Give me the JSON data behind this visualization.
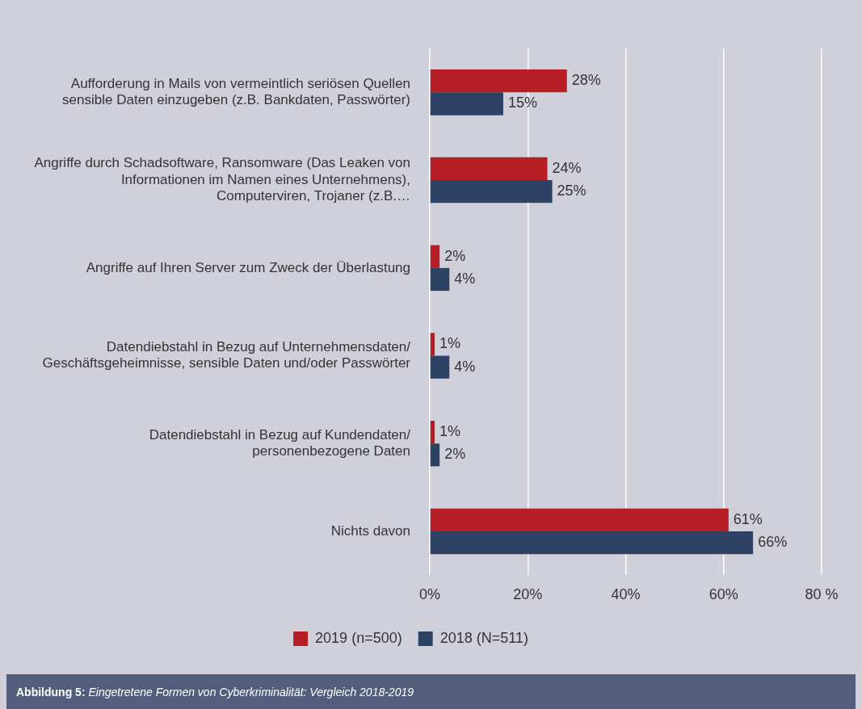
{
  "chart_data": {
    "type": "bar",
    "orientation": "horizontal",
    "categories": [
      "Aufforderung in Mails von vermeintlich seriösen Quellen sensible Daten einzugeben (z.B. Bankdaten, Passwörter)",
      "Angriffe durch Schadsoftware, Ransomware (Das Leaken von Informationen im Namen eines Unternehmens), Computerviren, Trojaner (z.B.…",
      "Angriffe auf Ihren Server zum Zweck der Überlastung",
      "Datendiebstahl in Bezug auf Unternehmensdaten/ Geschäftsgeheimnisse, sensible Daten und/oder Passwörter",
      "Datendiebstahl in Bezug auf Kundendaten/ personenbezogene Daten",
      "Nichts davon"
    ],
    "series": [
      {
        "name": "2019 (n=500)",
        "color": "#b41e24",
        "values": [
          28,
          24,
          2,
          1,
          1,
          61
        ],
        "value_labels": [
          "28%",
          "24%",
          "2%",
          "1%",
          "1%",
          "61%"
        ]
      },
      {
        "name": "2018 (N=511)",
        "color": "#2e4266",
        "values": [
          15,
          25,
          4,
          4,
          2,
          66
        ],
        "value_labels": [
          "15%",
          "25%",
          "4%",
          "4%",
          "2%",
          "66%"
        ]
      }
    ],
    "xlim": [
      0,
      80
    ],
    "xticks": [
      {
        "value": 0,
        "label": "0%"
      },
      {
        "value": 20,
        "label": "20%"
      },
      {
        "value": 40,
        "label": "40%"
      },
      {
        "value": 60,
        "label": "60%"
      },
      {
        "value": 80,
        "label": "80 %"
      }
    ],
    "grid": "x",
    "legend": "bottom",
    "annotations": [
      "Abbildung 5: Eingetretene Formen von Cyberkriminalität: Vergleich 2018-2019"
    ]
  }
}
